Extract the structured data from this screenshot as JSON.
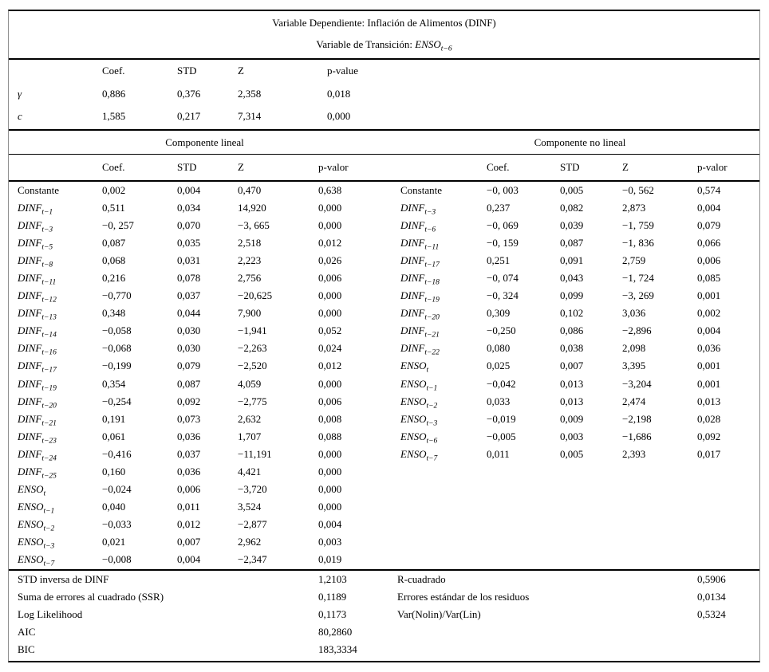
{
  "table": {
    "title_line1": "Variable Dependiente: Inflación de Alimentos (DINF)",
    "title_line2_prefix": "Variable de Transición: ",
    "transition_var": {
      "base": "ENSO",
      "sub": "t−6"
    },
    "top_section": {
      "headers": [
        "Coef.",
        "STD",
        "Z",
        "p-value"
      ],
      "rows": [
        {
          "label": {
            "base": "γ",
            "sub": "",
            "math": true
          },
          "values": [
            "0,886",
            "0,376",
            "2,358",
            "0,018"
          ]
        },
        {
          "label": {
            "base": "c",
            "sub": "",
            "math": true
          },
          "values": [
            "1,585",
            "0,217",
            "7,314",
            "0,000"
          ]
        }
      ]
    },
    "linear_panel": {
      "title": "Componente lineal",
      "headers": [
        "Coef.",
        "STD",
        "Z",
        "p-valor"
      ],
      "rows": [
        {
          "label": {
            "base": "Constante",
            "sub": "",
            "math": false
          },
          "values": [
            "0,002",
            "0,004",
            "0,470",
            "0,638"
          ]
        },
        {
          "label": {
            "base": "DINF",
            "sub": "t−1",
            "math": true
          },
          "values": [
            "0,511",
            "0,034",
            "14,920",
            "0,000"
          ]
        },
        {
          "label": {
            "base": "DINF",
            "sub": "t−3",
            "math": true
          },
          "values": [
            "−0, 257",
            "0,070",
            "−3, 665",
            "0,000"
          ]
        },
        {
          "label": {
            "base": "DINF",
            "sub": "t−5",
            "math": true
          },
          "values": [
            "0,087",
            "0,035",
            "2,518",
            "0,012"
          ]
        },
        {
          "label": {
            "base": "DINF",
            "sub": "t−8",
            "math": true
          },
          "values": [
            "0,068",
            "0,031",
            "2,223",
            "0,026"
          ]
        },
        {
          "label": {
            "base": "DINF",
            "sub": "t−11",
            "math": true
          },
          "values": [
            "0,216",
            "0,078",
            "2,756",
            "0,006"
          ]
        },
        {
          "label": {
            "base": "DINF",
            "sub": "t−12",
            "math": true
          },
          "values": [
            "−0,770",
            "0,037",
            "−20,625",
            "0,000"
          ]
        },
        {
          "label": {
            "base": "DINF",
            "sub": "t−13",
            "math": true
          },
          "values": [
            "0,348",
            "0,044",
            "7,900",
            "0,000"
          ]
        },
        {
          "label": {
            "base": "DINF",
            "sub": "t−14",
            "math": true
          },
          "values": [
            "−0,058",
            "0,030",
            "−1,941",
            "0,052"
          ]
        },
        {
          "label": {
            "base": "DINF",
            "sub": "t−16",
            "math": true
          },
          "values": [
            "−0,068",
            "0,030",
            "−2,263",
            "0,024"
          ]
        },
        {
          "label": {
            "base": "DINF",
            "sub": "t−17",
            "math": true
          },
          "values": [
            "−0,199",
            "0,079",
            "−2,520",
            "0,012"
          ]
        },
        {
          "label": {
            "base": "DINF",
            "sub": "t−19",
            "math": true
          },
          "values": [
            "0,354",
            "0,087",
            "4,059",
            "0,000"
          ]
        },
        {
          "label": {
            "base": "DINF",
            "sub": "t−20",
            "math": true
          },
          "values": [
            "−0,254",
            "0,092",
            "−2,775",
            "0,006"
          ]
        },
        {
          "label": {
            "base": "DINF",
            "sub": "t−21",
            "math": true
          },
          "values": [
            "0,191",
            "0,073",
            "2,632",
            "0,008"
          ]
        },
        {
          "label": {
            "base": "DINF",
            "sub": "t−23",
            "math": true
          },
          "values": [
            "0,061",
            "0,036",
            "1,707",
            "0,088"
          ]
        },
        {
          "label": {
            "base": "DINF",
            "sub": "t−24",
            "math": true
          },
          "values": [
            "−0,416",
            "0,037",
            "−11,191",
            "0,000"
          ]
        },
        {
          "label": {
            "base": "DINF",
            "sub": "t−25",
            "math": true
          },
          "values": [
            "0,160",
            "0,036",
            "4,421",
            "0,000"
          ]
        },
        {
          "label": {
            "base": "ENSO",
            "sub": "t",
            "math": true
          },
          "values": [
            "−0,024",
            "0,006",
            "−3,720",
            "0,000"
          ]
        },
        {
          "label": {
            "base": "ENSO",
            "sub": "t−1",
            "math": true
          },
          "values": [
            "0,040",
            "0,011",
            "3,524",
            "0,000"
          ]
        },
        {
          "label": {
            "base": "ENSO",
            "sub": "t−2",
            "math": true
          },
          "values": [
            "−0,033",
            "0,012",
            "−2,877",
            "0,004"
          ]
        },
        {
          "label": {
            "base": "ENSO",
            "sub": "t−3",
            "math": true
          },
          "values": [
            "0,021",
            "0,007",
            "2,962",
            "0,003"
          ]
        },
        {
          "label": {
            "base": "ENSO",
            "sub": "t−7",
            "math": true
          },
          "values": [
            "−0,008",
            "0,004",
            "−2,347",
            "0,019"
          ]
        }
      ]
    },
    "nonlinear_panel": {
      "title": "Componente no lineal",
      "headers": [
        "Coef.",
        "STD",
        "Z",
        "p-valor"
      ],
      "rows": [
        {
          "label": {
            "base": "Constante",
            "sub": "",
            "math": false
          },
          "values": [
            "−0, 003",
            "0,005",
            "−0, 562",
            "0,574"
          ]
        },
        {
          "label": {
            "base": "DINF",
            "sub": "t−3",
            "math": true
          },
          "values": [
            "0,237",
            "0,082",
            "2,873",
            "0,004"
          ]
        },
        {
          "label": {
            "base": "DINF",
            "sub": "t−6",
            "math": true
          },
          "values": [
            "−0, 069",
            "0,039",
            "−1, 759",
            "0,079"
          ]
        },
        {
          "label": {
            "base": "DINF",
            "sub": "t−11",
            "math": true
          },
          "values": [
            "−0, 159",
            "0,087",
            "−1, 836",
            "0,066"
          ]
        },
        {
          "label": {
            "base": "DINF",
            "sub": "t−17",
            "math": true
          },
          "values": [
            "0,251",
            "0,091",
            "2,759",
            "0,006"
          ]
        },
        {
          "label": {
            "base": "DINF",
            "sub": "t−18",
            "math": true
          },
          "values": [
            "−0, 074",
            "0,043",
            "−1, 724",
            "0,085"
          ]
        },
        {
          "label": {
            "base": "DINF",
            "sub": "t−19",
            "math": true
          },
          "values": [
            "−0, 324",
            "0,099",
            "−3, 269",
            "0,001"
          ]
        },
        {
          "label": {
            "base": "DINF",
            "sub": "t−20",
            "math": true
          },
          "values": [
            "0,309",
            "0,102",
            "3,036",
            "0,002"
          ]
        },
        {
          "label": {
            "base": "DINF",
            "sub": "t−21",
            "math": true
          },
          "values": [
            "−0,250",
            "0,086",
            "−2,896",
            "0,004"
          ]
        },
        {
          "label": {
            "base": "DINF",
            "sub": "t−22",
            "math": true
          },
          "values": [
            "0,080",
            "0,038",
            "2,098",
            "0,036"
          ]
        },
        {
          "label": {
            "base": "ENSO",
            "sub": "t",
            "math": true
          },
          "values": [
            "0,025",
            "0,007",
            "3,395",
            "0,001"
          ]
        },
        {
          "label": {
            "base": "ENSO",
            "sub": "t−1",
            "math": true
          },
          "values": [
            "−0,042",
            "0,013",
            "−3,204",
            "0,001"
          ]
        },
        {
          "label": {
            "base": "ENSO",
            "sub": "t−2",
            "math": true
          },
          "values": [
            "0,033",
            "0,013",
            "2,474",
            "0,013"
          ]
        },
        {
          "label": {
            "base": "ENSO",
            "sub": "t−3",
            "math": true
          },
          "values": [
            "−0,019",
            "0,009",
            "−2,198",
            "0,028"
          ]
        },
        {
          "label": {
            "base": "ENSO",
            "sub": "t−6",
            "math": true
          },
          "values": [
            "−0,005",
            "0,003",
            "−1,686",
            "0,092"
          ]
        },
        {
          "label": {
            "base": "ENSO",
            "sub": "t−7",
            "math": true
          },
          "values": [
            "0,011",
            "0,005",
            "2,393",
            "0,017"
          ]
        }
      ]
    },
    "summary": {
      "left": [
        {
          "label": "STD inversa de DINF",
          "value": "1,2103"
        },
        {
          "label": "Suma de errores al cuadrado (SSR)",
          "value": "0,1189"
        },
        {
          "label": "Log Likelihood",
          "value": "0,1173"
        },
        {
          "label": "AIC",
          "value": "80,2860"
        },
        {
          "label": "BIC",
          "value": "183,3334"
        }
      ],
      "right": [
        {
          "label": "R-cuadrado",
          "value": "0,5906"
        },
        {
          "label": "Errores estándar de los residuos",
          "value": "0,0134"
        },
        {
          "label": "Var(Nolin)/Var(Lin)",
          "value": "0,5324"
        }
      ]
    }
  }
}
